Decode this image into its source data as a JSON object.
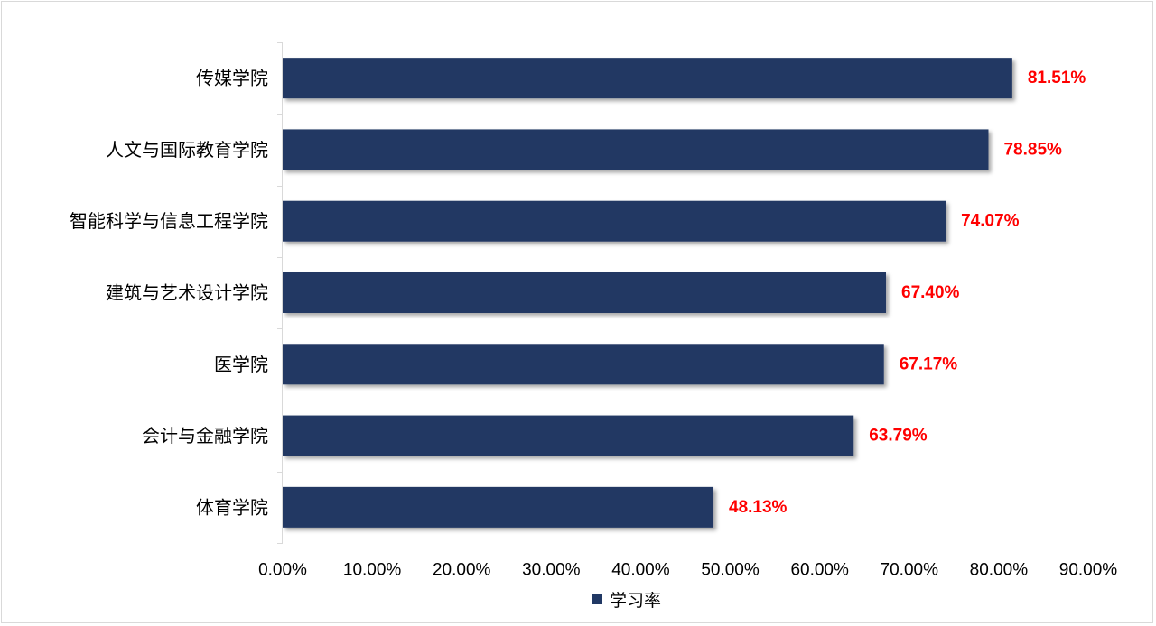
{
  "chart_data": {
    "type": "bar",
    "orientation": "horizontal",
    "categories": [
      "传媒学院",
      "人文与国际教育学院",
      "智能科学与信息工程学院",
      "建筑与艺术设计学院",
      "医学院",
      "会计与金融学院",
      "体育学院"
    ],
    "series": [
      {
        "name": "学习率",
        "values": [
          81.51,
          78.85,
          74.07,
          67.4,
          67.17,
          63.79,
          48.13
        ],
        "labels": [
          "81.51%",
          "78.85%",
          "74.07%",
          "67.40%",
          "67.17%",
          "63.79%",
          "48.13%"
        ]
      }
    ],
    "xlim": [
      0,
      90
    ],
    "xticks": [
      "0.00%",
      "10.00%",
      "20.00%",
      "30.00%",
      "40.00%",
      "50.00%",
      "60.00%",
      "70.00%",
      "80.00%",
      "90.00%"
    ],
    "grid": false,
    "legend_position": "bottom",
    "colors": {
      "bar": "#213864",
      "data_label": "#ff0000",
      "axis": "#d9d9d9"
    }
  }
}
